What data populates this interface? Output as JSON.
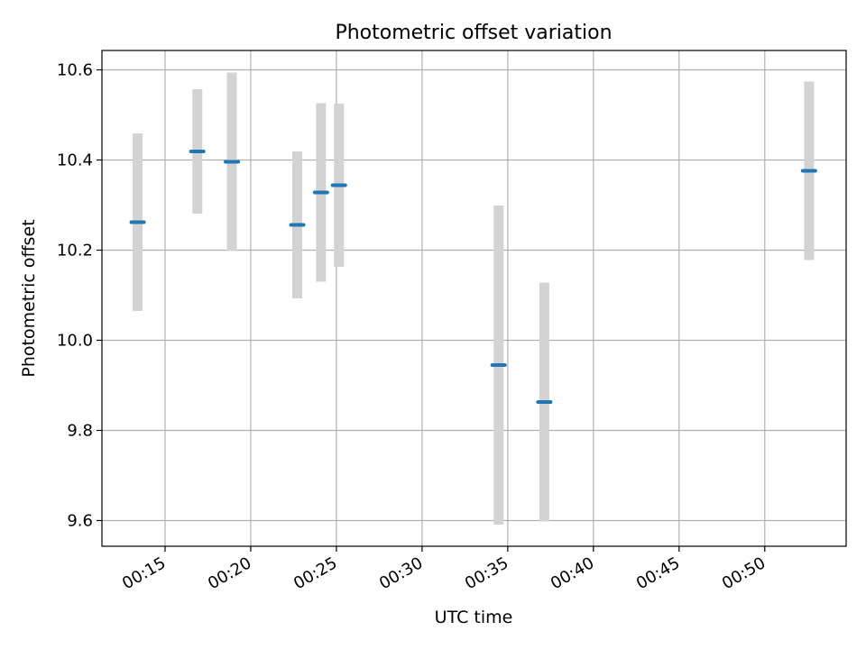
{
  "chart_data": {
    "type": "scatter",
    "title": "Photometric offset variation",
    "xlabel": "UTC time",
    "ylabel": "Photometric offset",
    "xlim": [
      "00:11:19",
      "00:54:45"
    ],
    "ylim": [
      9.543,
      10.643
    ],
    "grid": true,
    "x_ticks": [
      "00:15",
      "00:20",
      "00:25",
      "00:30",
      "00:35",
      "00:40",
      "00:45",
      "00:50"
    ],
    "y_ticks": [
      "9.6",
      "9.8",
      "10.0",
      "10.2",
      "10.4",
      "10.6"
    ],
    "colors": {
      "marker": "#1f77b4",
      "errorbar": "#d3d3d3",
      "grid": "#b0b0b0"
    },
    "points": [
      {
        "x": "00:13:24",
        "y": 10.262,
        "yerr": 0.197
      },
      {
        "x": "00:16:53",
        "y": 10.419,
        "yerr": 0.138
      },
      {
        "x": "00:18:54",
        "y": 10.396,
        "yerr": 0.198
      },
      {
        "x": "00:22:43",
        "y": 10.256,
        "yerr": 0.163
      },
      {
        "x": "00:24:06",
        "y": 10.328,
        "yerr": 0.198
      },
      {
        "x": "00:25:09",
        "y": 10.344,
        "yerr": 0.181
      },
      {
        "x": "00:34:28",
        "y": 9.945,
        "yerr": 0.354
      },
      {
        "x": "00:37:08",
        "y": 9.863,
        "yerr": 0.265
      },
      {
        "x": "00:52:35",
        "y": 10.376,
        "yerr": 0.198
      }
    ]
  }
}
